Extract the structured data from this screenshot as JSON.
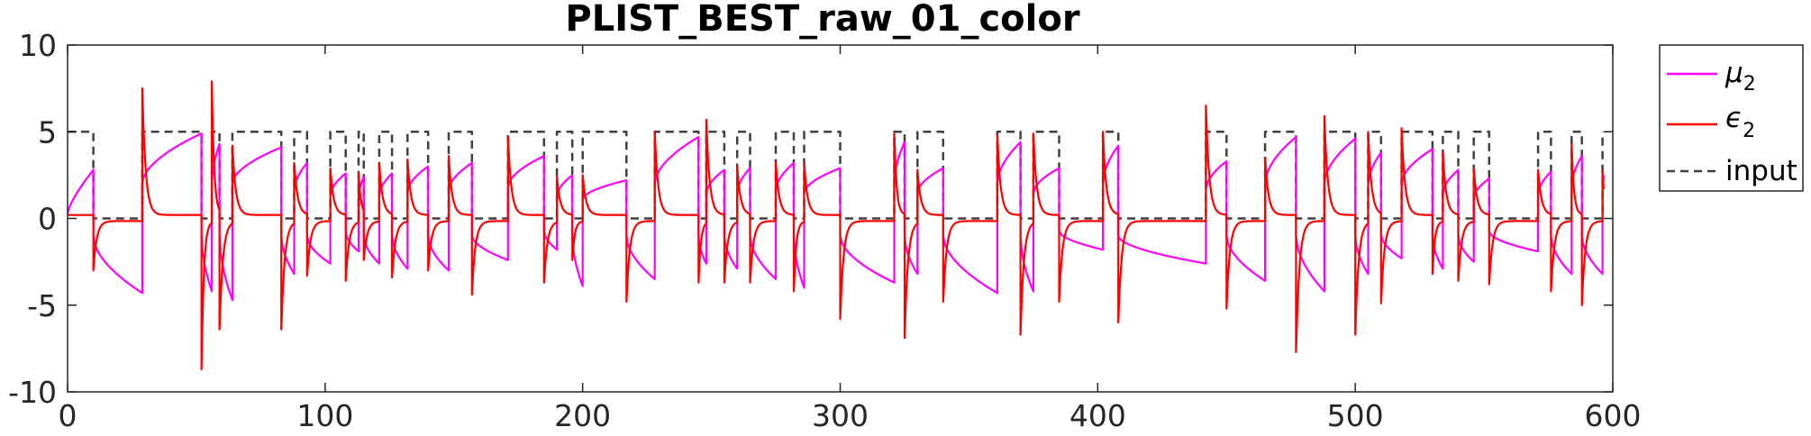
{
  "chart_data": {
    "type": "line",
    "title": "PLIST_BEST_raw_01_color",
    "xlabel": "",
    "ylabel": "",
    "xlim": [
      0,
      600
    ],
    "ylim": [
      -10,
      10
    ],
    "xticks": [
      0,
      100,
      200,
      300,
      400,
      500,
      600
    ],
    "xtick_labels": [
      "0",
      "100",
      "200",
      "300",
      "400",
      "500",
      "600"
    ],
    "yticks": [
      -10,
      -5,
      0,
      5,
      10
    ],
    "ytick_labels": [
      "-10",
      "-5",
      "0",
      "5",
      "10"
    ],
    "grid": false,
    "legend_position": "outside-right-top",
    "input_level": 5,
    "input_switch_times": [
      0,
      10,
      29,
      52,
      56,
      59,
      64,
      83,
      88,
      93,
      102,
      108,
      113,
      115,
      121,
      126,
      132,
      140,
      148,
      157,
      171,
      185,
      190,
      196,
      200,
      217,
      228,
      245,
      248,
      255,
      260,
      265,
      275,
      282,
      286,
      300,
      321,
      325,
      330,
      340,
      361,
      370,
      375,
      385,
      402,
      408,
      442,
      450,
      465,
      477,
      488,
      500,
      505,
      510,
      518,
      530,
      534,
      540,
      546,
      552,
      571,
      576,
      584,
      588,
      596
    ],
    "input_initial": 1,
    "peaks": {
      "mu2_up": [
        2.8,
        4.9,
        4.3,
        4.1,
        3.2,
        2.6,
        2.4,
        2.6,
        3.0,
        3.2,
        3.6,
        2.5,
        2.2,
        4.7,
        2.8,
        2.9,
        3.2,
        2.9,
        4.4,
        2.9,
        4.4,
        2.9,
        4.2,
        3.3,
        4.7,
        4.6,
        3.8,
        4.0,
        2.8,
        2.3,
        2.7,
        3.6,
        2.5,
        3.6,
        4.3,
        2.7
      ],
      "mu2_down": [
        -4.3,
        -4.2,
        -4.7,
        -3.2,
        -2.6,
        -1.9,
        -2.6,
        -2.9,
        -3.0,
        -2.4,
        -1.8,
        -3.9,
        -3.5,
        -2.6,
        -2.9,
        -3.5,
        -4.0,
        -3.7,
        -3.2,
        -4.3,
        -4.2,
        -1.8,
        -2.6,
        -3.6,
        -4.2,
        -3.2,
        -2.3,
        -2.9,
        -2.5,
        -1.9,
        -3.2,
        -3.2
      ],
      "eps2_up": [
        6.4,
        7.5,
        7.9,
        4.2,
        3.2,
        2.9,
        2.6,
        3.2,
        3.4,
        3.6,
        4.7,
        2.4,
        2.5,
        5.0,
        5.7,
        3.0,
        3.2,
        3.2,
        4.9,
        2.8,
        4.8,
        4.9,
        5.0,
        6.5,
        3.5,
        5.9,
        5.0,
        5.2,
        3.8,
        2.9,
        2.8,
        4.3,
        2.8,
        3.8,
        5.3,
        5.1
      ],
      "eps2_down": [
        -3.0,
        -8.7,
        -6.4,
        -6.4,
        -3.3,
        -3.6,
        -2.4,
        -3.4,
        -3.0,
        -4.4,
        -3.7,
        -2.4,
        -4.8,
        -3.7,
        -3.7,
        -3.7,
        -4.2,
        -5.8,
        -6.9,
        -4.8,
        -6.7,
        -4.8,
        -6.0,
        -5.2,
        -7.7,
        -6.7,
        -4.9,
        -3.2,
        -3.6,
        -3.8,
        -4.2,
        -5.0,
        -4.3,
        -3.2,
        -3.6
      ]
    },
    "series": [
      {
        "name": "μ",
        "subscript": "2",
        "color": "#ff00ff",
        "style": "solid"
      },
      {
        "name": "ϵ",
        "subscript": "2",
        "color": "#ff0000",
        "style": "solid"
      },
      {
        "name": "input",
        "subscript": "",
        "color": "#404040",
        "style": "dashed"
      }
    ]
  }
}
